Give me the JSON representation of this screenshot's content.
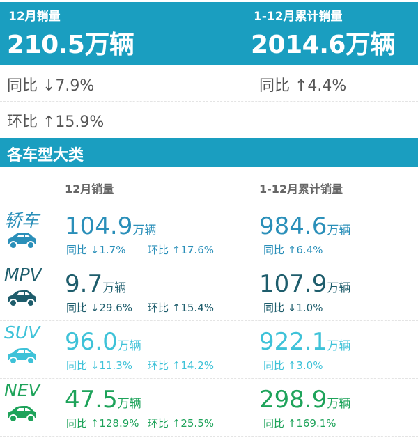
{
  "summary": {
    "month_label": "12月销量",
    "month_value": "210.5",
    "unit": "万辆",
    "ytd_label": "1-12月累计销量",
    "ytd_value": "2014.6",
    "month_yoy": "同比 ↓7.9%",
    "month_mom": "环比 ↑15.9%",
    "ytd_yoy": "同比 ↑4.4%"
  },
  "section_title": "各车型大类",
  "columns": {
    "month": "12月销量",
    "ytd": "1-12月累计销量"
  },
  "categories": [
    {
      "name": "轿车",
      "icon": "sedan-icon",
      "color": "#2a8fb9",
      "month": "104.9",
      "month_yoy": "同比 ↓1.7%",
      "month_mom": "环比 ↑17.6%",
      "ytd": "984.6",
      "ytd_yoy": "同比 ↑6.4%"
    },
    {
      "name": "MPV",
      "icon": "mpv-icon",
      "color": "#1e5d6c",
      "month": "9.7",
      "month_yoy": "同比 ↓29.6%",
      "month_mom": "环比 ↑15.4%",
      "ytd": "107.9",
      "ytd_yoy": "同比 ↓1.0%"
    },
    {
      "name": "SUV",
      "icon": "suv-icon",
      "color": "#3ec2d8",
      "month": "96.0",
      "month_yoy": "同比 ↓11.3%",
      "month_mom": "环比 ↑14.2%",
      "ytd": "922.1",
      "ytd_yoy": "同比 ↑3.0%"
    },
    {
      "name": "NEV",
      "icon": "nev-icon",
      "color": "#1ea35a",
      "month": "47.5",
      "month_yoy": "同比 ↑128.9%",
      "month_mom": "环比 ↑25.5%",
      "ytd": "298.9",
      "ytd_yoy": "同比 ↑169.1%"
    }
  ],
  "unit": "万辆",
  "colors": {
    "band": "#1a9ec0"
  }
}
